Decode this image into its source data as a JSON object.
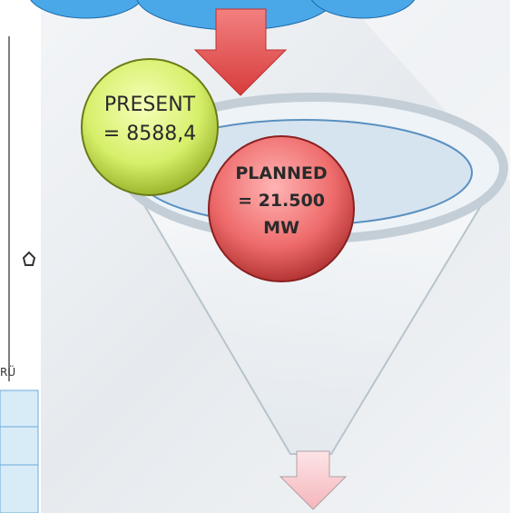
{
  "present": {
    "label": "PRESENT",
    "value": "= 8588,4"
  },
  "planned": {
    "label": "PLANNED",
    "value": "= 21.500",
    "unit": "MW"
  },
  "side_text": "RÜ"
}
